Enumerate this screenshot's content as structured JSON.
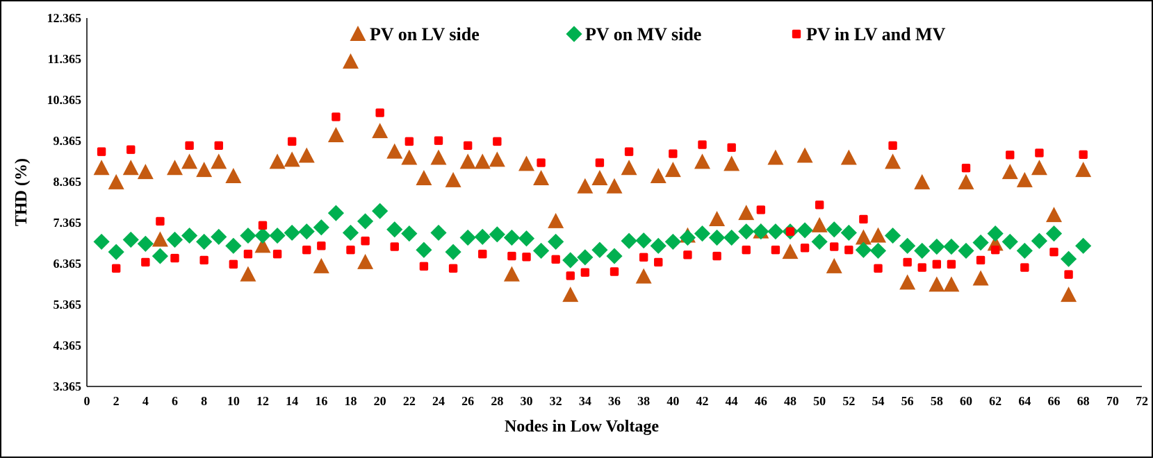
{
  "chart_data": {
    "type": "scatter",
    "xlabel": "Nodes in Low Voltage",
    "ylabel": "THD (%)",
    "xlim": [
      0,
      72
    ],
    "ylim": [
      3.365,
      12.365
    ],
    "x_ticks": [
      "0",
      "2",
      "4",
      "6",
      "8",
      "10",
      "12",
      "14",
      "16",
      "18",
      "20",
      "22",
      "24",
      "26",
      "28",
      "30",
      "32",
      "34",
      "36",
      "38",
      "40",
      "42",
      "44",
      "46",
      "48",
      "50",
      "52",
      "54",
      "56",
      "58",
      "60",
      "62",
      "64",
      "66",
      "68",
      "70",
      "72"
    ],
    "y_ticks": [
      "3.365",
      "4.365",
      "5.365",
      "6.365",
      "7.365",
      "8.365",
      "9.365",
      "10.365",
      "11.365",
      "12.365"
    ],
    "grid": false,
    "legend_position": "top",
    "series": [
      {
        "name": "PV on LV side",
        "marker": "triangle",
        "color": "#C55A11",
        "x": [
          1,
          2,
          3,
          4,
          5,
          6,
          7,
          8,
          9,
          10,
          11,
          12,
          13,
          14,
          15,
          16,
          17,
          18,
          19,
          20,
          21,
          22,
          23,
          24,
          25,
          26,
          27,
          28,
          29,
          30,
          31,
          32,
          33,
          34,
          35,
          36,
          37,
          38,
          39,
          40,
          41,
          42,
          43,
          44,
          45,
          46,
          47,
          48,
          49,
          50,
          51,
          52,
          53,
          54,
          55,
          56,
          57,
          58,
          59,
          60,
          61,
          62,
          63,
          64,
          65,
          66,
          67,
          68
        ],
        "y": [
          8.7,
          8.35,
          8.7,
          8.6,
          6.95,
          8.7,
          8.85,
          8.65,
          8.85,
          8.5,
          6.1,
          6.8,
          8.85,
          8.9,
          9.0,
          6.3,
          9.5,
          11.3,
          6.4,
          9.6,
          9.1,
          8.95,
          8.45,
          8.95,
          8.4,
          8.85,
          8.85,
          8.9,
          6.1,
          8.8,
          8.45,
          7.4,
          5.6,
          8.25,
          8.45,
          8.25,
          8.7,
          6.05,
          8.5,
          8.65,
          7.05,
          8.85,
          7.45,
          8.8,
          7.6,
          7.15,
          8.95,
          6.65,
          9.0,
          7.3,
          6.3,
          8.95,
          7.0,
          7.05,
          8.85,
          5.9,
          8.35,
          5.85,
          5.85,
          8.35,
          6.0,
          6.85,
          8.6,
          8.4,
          8.7,
          7.55,
          5.6,
          8.65
        ]
      },
      {
        "name": "PV on MV side",
        "marker": "diamond",
        "color": "#00B050",
        "x": [
          1,
          2,
          3,
          4,
          5,
          6,
          7,
          8,
          9,
          10,
          11,
          12,
          13,
          14,
          15,
          16,
          17,
          18,
          19,
          20,
          21,
          22,
          23,
          24,
          25,
          26,
          27,
          28,
          29,
          30,
          31,
          32,
          33,
          34,
          35,
          36,
          37,
          38,
          39,
          40,
          41,
          42,
          43,
          44,
          45,
          46,
          47,
          48,
          49,
          50,
          51,
          52,
          53,
          54,
          55,
          56,
          57,
          58,
          59,
          60,
          61,
          62,
          63,
          64,
          65,
          66,
          67,
          68
        ],
        "y": [
          6.9,
          6.65,
          6.95,
          6.85,
          6.55,
          6.95,
          7.05,
          6.9,
          7.02,
          6.8,
          7.05,
          7.05,
          7.05,
          7.12,
          7.15,
          7.25,
          7.6,
          7.12,
          7.4,
          7.65,
          7.2,
          7.1,
          6.7,
          7.12,
          6.65,
          7.0,
          7.02,
          7.08,
          7.0,
          6.98,
          6.68,
          6.9,
          6.45,
          6.52,
          6.7,
          6.55,
          6.92,
          6.93,
          6.8,
          6.9,
          7.0,
          7.1,
          7.0,
          7.0,
          7.15,
          7.15,
          7.15,
          7.15,
          7.18,
          6.9,
          7.2,
          7.12,
          6.7,
          6.68,
          7.05,
          6.8,
          6.68,
          6.78,
          6.78,
          6.68,
          6.88,
          7.1,
          6.9,
          6.68,
          6.92,
          7.1,
          6.48,
          6.8
        ]
      },
      {
        "name": "PV in LV and MV",
        "marker": "square",
        "color": "#FF0000",
        "x": [
          1,
          2,
          3,
          4,
          5,
          6,
          7,
          8,
          9,
          10,
          11,
          12,
          13,
          14,
          15,
          16,
          17,
          18,
          19,
          20,
          21,
          22,
          23,
          24,
          25,
          26,
          27,
          28,
          29,
          30,
          31,
          32,
          33,
          34,
          35,
          36,
          37,
          38,
          39,
          40,
          41,
          42,
          43,
          44,
          45,
          46,
          47,
          48,
          49,
          50,
          51,
          52,
          53,
          54,
          55,
          56,
          57,
          58,
          59,
          60,
          61,
          62,
          63,
          64,
          65,
          66,
          67,
          68
        ],
        "y": [
          9.1,
          6.25,
          9.15,
          6.4,
          7.4,
          6.5,
          9.25,
          6.45,
          9.25,
          6.35,
          6.6,
          7.3,
          6.6,
          9.35,
          6.7,
          6.8,
          9.95,
          6.7,
          6.92,
          10.05,
          6.78,
          9.35,
          6.3,
          9.37,
          6.25,
          9.25,
          6.6,
          9.35,
          6.55,
          6.53,
          8.83,
          6.47,
          6.07,
          6.15,
          8.83,
          6.17,
          9.1,
          6.52,
          6.4,
          9.05,
          6.58,
          9.27,
          6.55,
          9.2,
          6.7,
          7.68,
          6.7,
          7.15,
          6.75,
          7.8,
          6.78,
          6.7,
          7.45,
          6.25,
          9.25,
          6.4,
          6.27,
          6.35,
          6.35,
          8.7,
          6.45,
          6.7,
          9.02,
          6.27,
          9.07,
          6.65,
          6.1,
          9.03
        ]
      }
    ]
  }
}
